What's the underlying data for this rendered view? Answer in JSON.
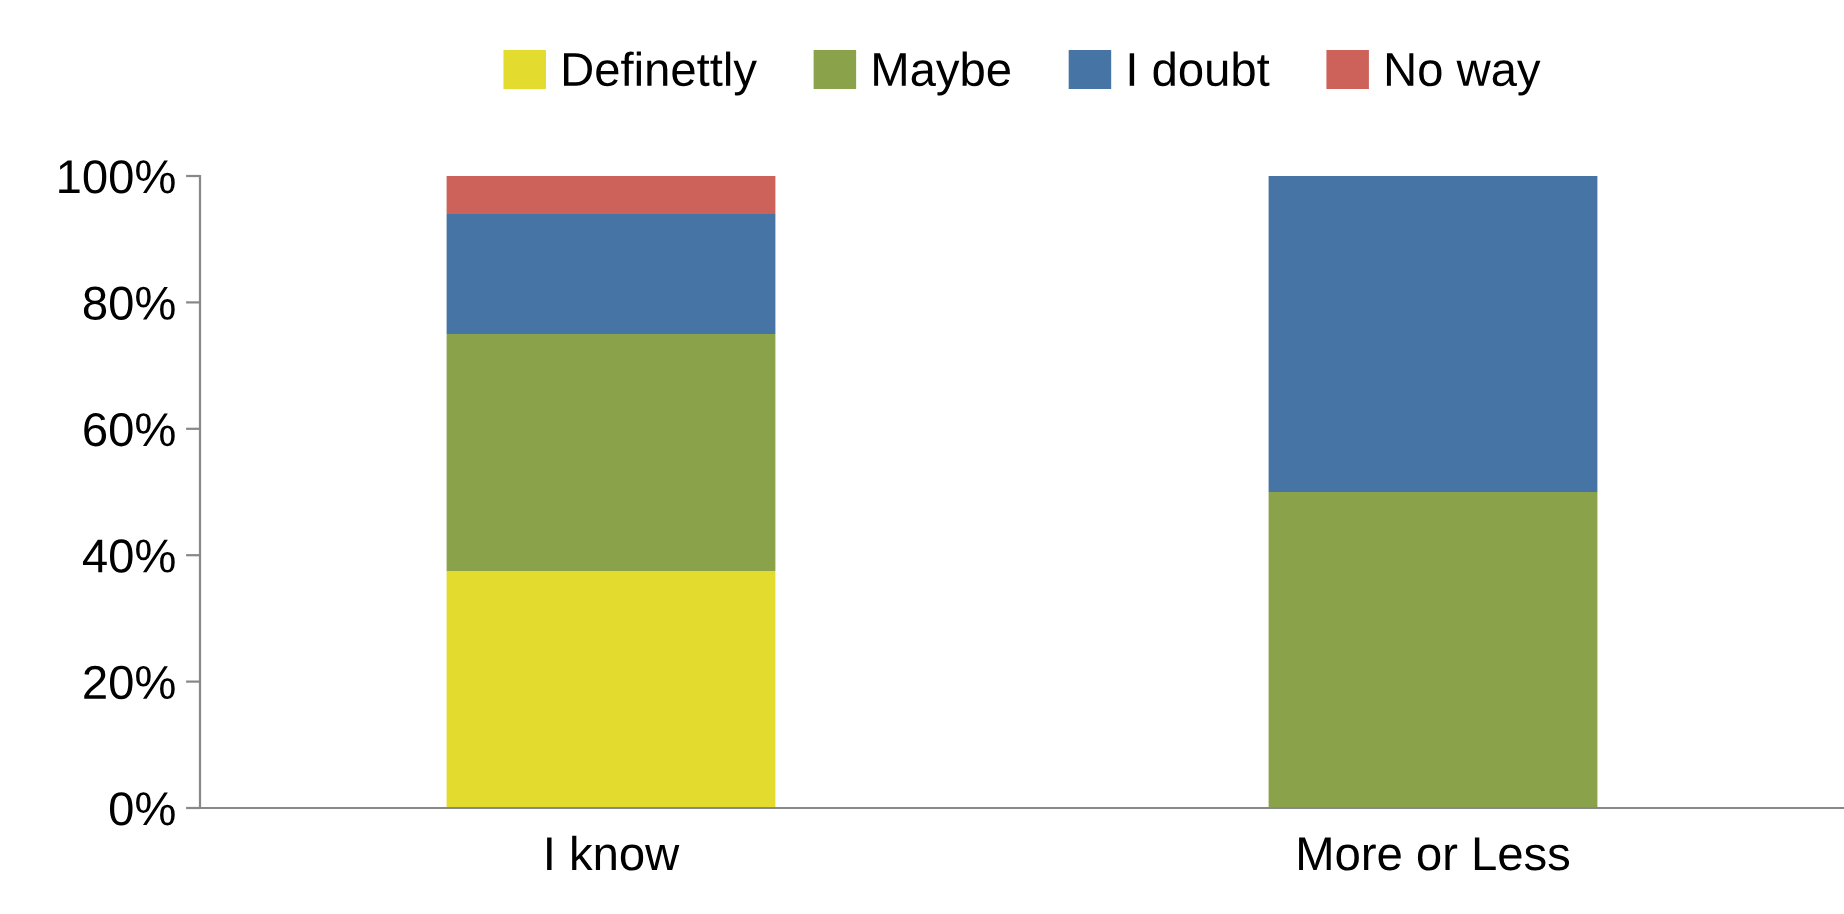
{
  "chart_data": {
    "type": "bar",
    "stacked": true,
    "categories": [
      "I know",
      "More or Less"
    ],
    "series": [
      {
        "name": "Definettly",
        "color": "#e3dc2f",
        "values": [
          37.5,
          0
        ]
      },
      {
        "name": "Maybe",
        "color": "#8aa34b",
        "values": [
          37.5,
          50
        ]
      },
      {
        "name": "I doubt",
        "color": "#4674a5",
        "values": [
          19,
          50
        ]
      },
      {
        "name": "No way",
        "color": "#cd625b",
        "values": [
          6,
          0
        ]
      }
    ],
    "ylim": [
      0,
      100
    ],
    "yticks": [
      {
        "value": 0,
        "label": "0%"
      },
      {
        "value": 20,
        "label": "20%"
      },
      {
        "value": 40,
        "label": "40%"
      },
      {
        "value": 60,
        "label": "60%"
      },
      {
        "value": 80,
        "label": "80%"
      },
      {
        "value": 100,
        "label": "100%"
      }
    ],
    "grid": false,
    "legend": "top"
  }
}
